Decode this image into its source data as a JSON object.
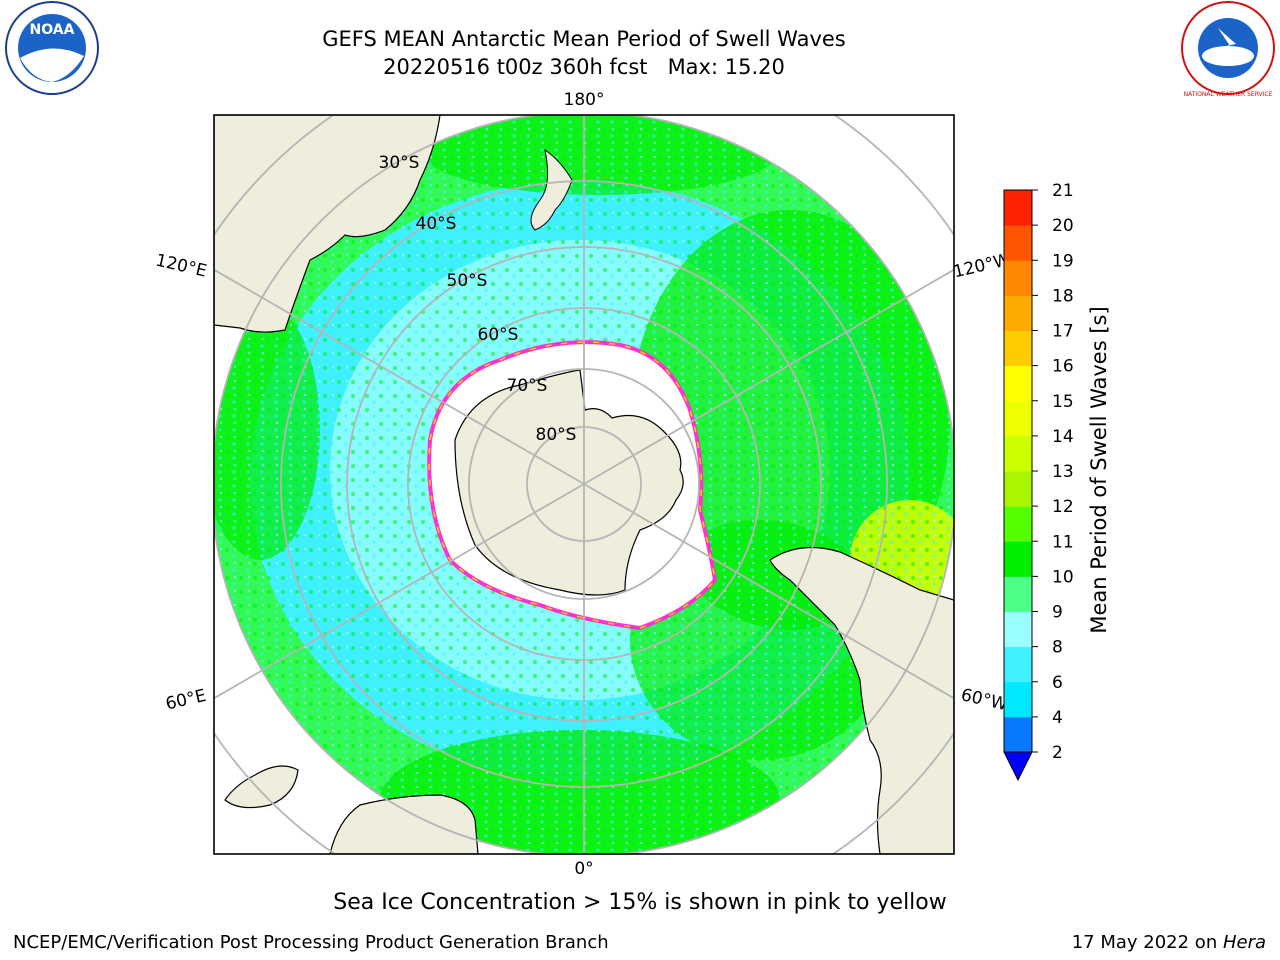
{
  "header": {
    "title_line1": "GEFS MEAN Antarctic Mean Period of Swell Waves",
    "title_line2": "20220516 t00z 360h fcst   Max: 15.20",
    "left_logo_text": "NOAA",
    "right_logo_text": "NATIONAL WEATHER SERVICE"
  },
  "map": {
    "projection": "south-polar-stereographic",
    "longitude_labels": {
      "top": "180°",
      "bottom": "0°",
      "upper_left": "120°E",
      "upper_right": "120°W",
      "lower_left": "60°E",
      "lower_right": "60°W"
    },
    "latitude_labels": [
      "30°S",
      "40°S",
      "50°S",
      "60°S",
      "70°S",
      "80°S"
    ],
    "colors": {
      "land": "#efeddc",
      "ice_edge": "#ff33cc",
      "grid": "#b5b5b5"
    }
  },
  "colorbar": {
    "title": "Mean Period of Swell Waves [s]",
    "ticks": [
      "2",
      "4",
      "6",
      "8",
      "9",
      "10",
      "11",
      "12",
      "13",
      "14",
      "15",
      "16",
      "17",
      "18",
      "19",
      "20",
      "21"
    ],
    "colors": [
      "#0a7afc",
      "#00e8ff",
      "#3ff0ff",
      "#99ffff",
      "#4dff88",
      "#00ee00",
      "#55ff00",
      "#aaf500",
      "#ccff00",
      "#eeff00",
      "#ffff00",
      "#ffcc00",
      "#ffaa00",
      "#ff8800",
      "#ff5500",
      "#ff2200"
    ],
    "under_color": "#0000ff"
  },
  "footer": {
    "note": "Sea Ice Concentration > 15% is shown in pink to yellow",
    "left": "NCEP/EMC/Verification Post Processing Product Generation Branch",
    "right_prefix": "17 May 2022 on ",
    "right_host": "Hera"
  }
}
